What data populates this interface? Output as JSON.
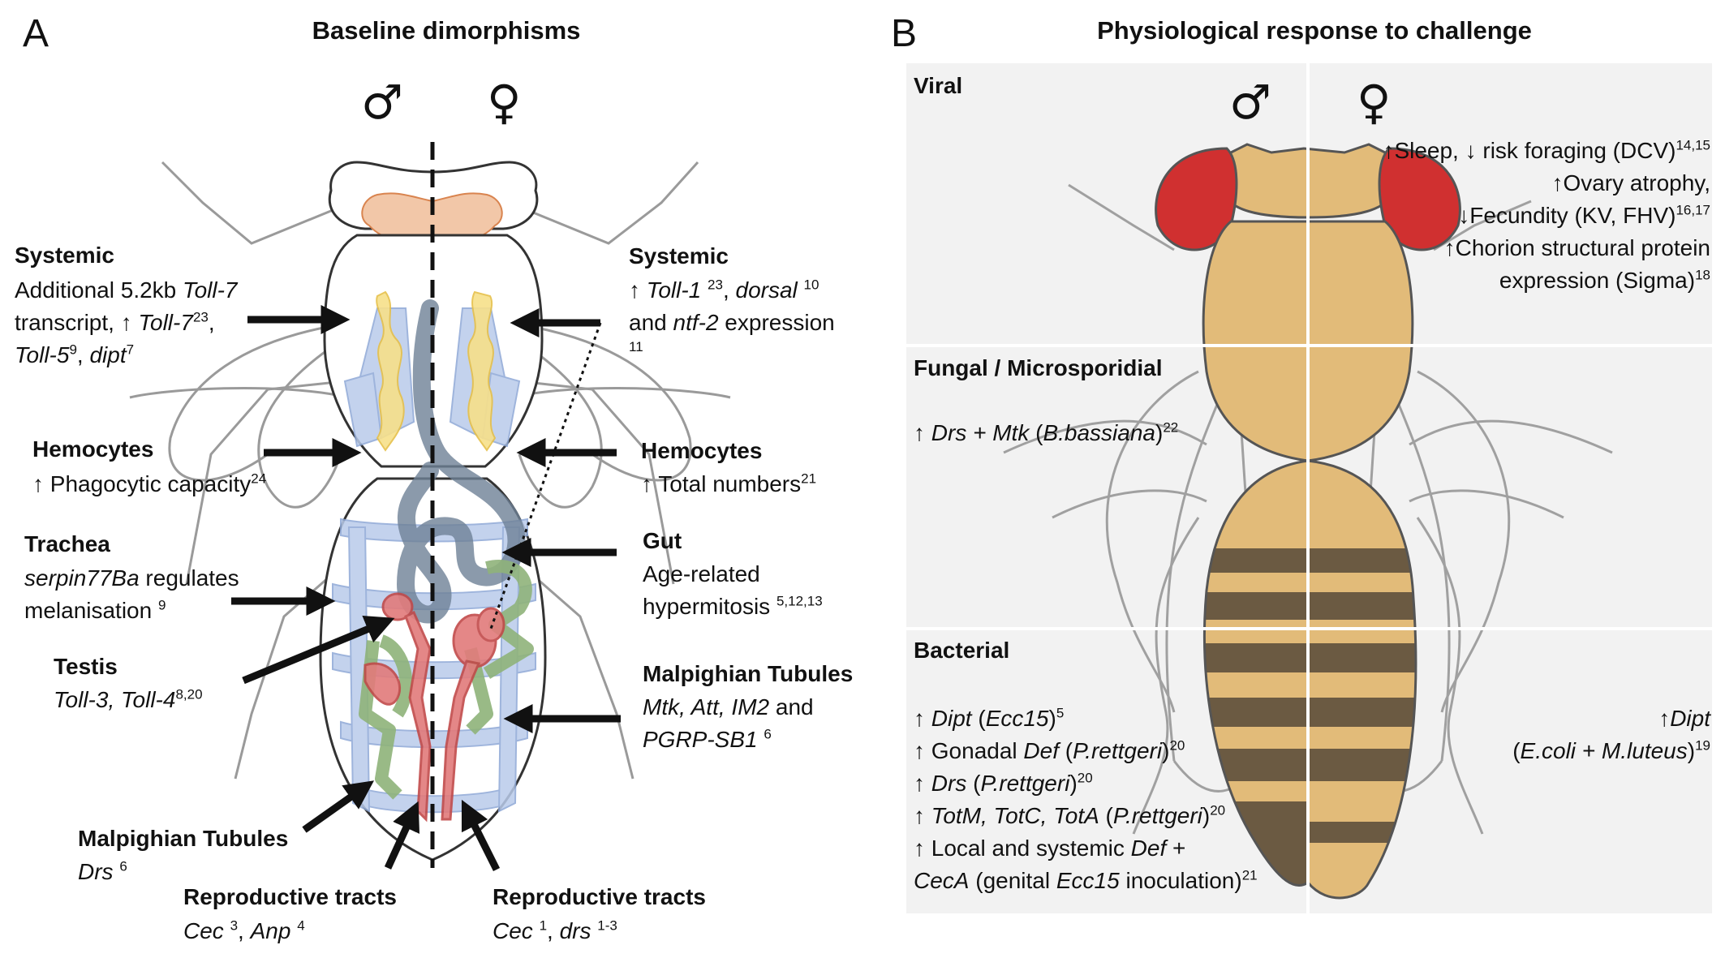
{
  "panel_a": {
    "letter": "A",
    "title": "Baseline dimorphisms",
    "male_symbol": "♂",
    "female_symbol": "♀",
    "left": {
      "systemic": {
        "heading": "Systemic",
        "l1a": "Additional 5.2kb ",
        "l1b": "Toll-7",
        "l2a": "transcript, ↑ ",
        "l2b": "Toll-7",
        "l2s": "23",
        "l2c": ",",
        "l3a": "Toll-5",
        "l3s": "9",
        "l3b": ", ",
        "l3c": "dipt",
        "l3t": "7"
      },
      "hemocytes": {
        "heading": "Hemocytes",
        "l1": "↑ Phagocytic capacity",
        "l1s": "24"
      },
      "trachea": {
        "heading": "Trachea",
        "l1a": "serpin77Ba",
        "l1b": " regulates",
        "l2": "melanisation ",
        "l2s": "9"
      },
      "testis": {
        "heading": "Testis",
        "l1": "Toll-3, Toll-4",
        "l1s": "8,20"
      },
      "malpighian": {
        "heading": "Malpighian Tubules",
        "l1": "Drs",
        "l1s": "6"
      },
      "repro": {
        "heading": "Reproductive tracts",
        "l1a": "Cec",
        "l1s1": "3",
        "l1b": ", ",
        "l1c": "Anp",
        "l1s2": "4"
      }
    },
    "right": {
      "systemic": {
        "heading": "Systemic",
        "l1a": "↑ ",
        "l1b": "Toll-1",
        "l1s": "23",
        "l1c": ", ",
        "l1d": "dorsal",
        "l1t": "10",
        "l2a": "and ",
        "l2b": "ntf-2",
        "l2c": " expression",
        "l3": "11"
      },
      "hemocytes": {
        "heading": "Hemocytes",
        "l1": "↑ Total numbers",
        "l1s": "21"
      },
      "gut": {
        "heading": "Gut",
        "l1": "Age-related",
        "l2": "hypermitosis ",
        "l2s": "5,12,13"
      },
      "malpighian": {
        "heading": "Malpighian Tubules",
        "l1a": "Mtk, Att, IM2",
        "l1b": " and",
        "l2a": "PGRP-SB1",
        "l2s": "6"
      },
      "repro": {
        "heading": "Reproductive tracts",
        "l1a": "Cec",
        "l1s1": "1",
        "l1b": ", ",
        "l1c": "drs",
        "l1s2": "1-3"
      }
    }
  },
  "panel_b": {
    "letter": "B",
    "title": "Physiological response to challenge",
    "male_symbol": "♂",
    "female_symbol": "♀",
    "viral": {
      "label": "Viral",
      "r1": "↑Sleep, ↓ risk foraging (DCV)",
      "r1s": "14,15",
      "r2": "↑Ovary atrophy,",
      "r3": "↓Fecundity (KV, FHV)",
      "r3s": "16,17",
      "r4": "↑Chorion structural protein",
      "r5": "expression (Sigma)",
      "r5s": "18"
    },
    "fungal": {
      "label": "Fungal / Microsporidial",
      "l1a": "↑ ",
      "l1b": "Drs + Mtk",
      "l1c": " (",
      "l1d": "B.bassiana",
      "l1e": ")",
      "l1s": "22"
    },
    "bacterial": {
      "label": "Bacterial",
      "m1a": "↑ ",
      "m1b": "Dipt",
      "m1c": " (",
      "m1d": "Ecc15",
      "m1e": ")",
      "m1s": "5",
      "m2a": "↑ Gonadal ",
      "m2b": "Def",
      "m2c": " (",
      "m2d": "P.rettgeri",
      "m2e": ")",
      "m2s": "20",
      "m3a": "↑ ",
      "m3b": "Drs",
      "m3c": " (",
      "m3d": "P.rettgeri",
      "m3e": ")",
      "m3s": "20",
      "m4a": "↑ ",
      "m4b": "TotM, TotC, TotA",
      "m4c": " (",
      "m4d": "P.rettgeri",
      "m4e": ")",
      "m4s": "20",
      "m5a": "↑ Local and systemic ",
      "m5b": "Def",
      "m5c": " +",
      "m6a": "CecA",
      "m6b": " (genital ",
      "m6c": "Ecc15",
      "m6d": " inoculation)",
      "m6s": "21",
      "f1a": "↑",
      "f1b": "Dipt",
      "f2a": "(",
      "f2b": "E.coli + M.luteus",
      "f2c": ")",
      "f2s": "19"
    }
  },
  "colors": {
    "brain": "#f2c7a8",
    "fatbody": "#f7e08a",
    "tissue_blue": "#b9cbea",
    "gut": "#6e8196",
    "tubule_green": "#8fb37a",
    "repro_red": "#e27b7b",
    "fly_body": "#e2bb79",
    "fly_stripe": "#6b5a42",
    "fly_eye": "#d03030",
    "panel_bg": "#f2f2f2"
  }
}
